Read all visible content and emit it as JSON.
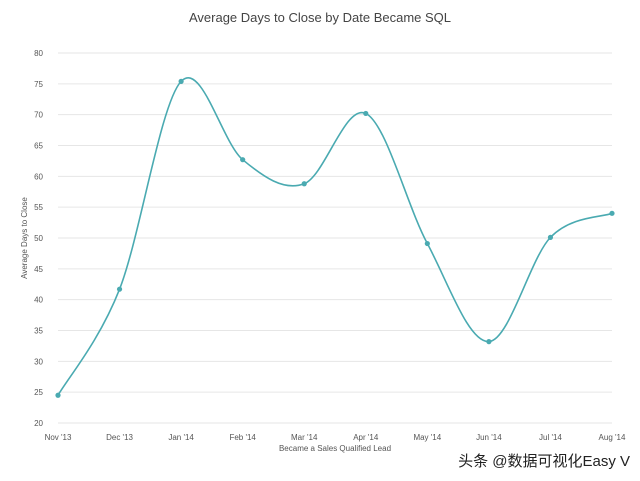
{
  "chart_data": {
    "type": "line",
    "title": "Average Days to Close by Date Became SQL",
    "xlabel": "Became a Sales Qualified Lead",
    "ylabel": "Average Days to Close",
    "categories": [
      "Nov '13",
      "Dec '13",
      "Jan '14",
      "Feb '14",
      "Mar '14",
      "Apr '14",
      "May '14",
      "Jun '14",
      "Jul '14",
      "Aug '14"
    ],
    "series": [
      {
        "values": [
          24.5,
          41.7,
          75.4,
          62.7,
          58.8,
          70.2,
          49.1,
          33.2,
          50.1,
          54.0
        ]
      }
    ],
    "ylim": [
      20,
      80
    ],
    "yticks": [
      "20",
      "25",
      "30",
      "35",
      "40",
      "45",
      "50",
      "55",
      "60",
      "65",
      "70",
      "75",
      "80"
    ],
    "grid": true,
    "legend": "none",
    "curve": "smooth"
  },
  "watermark": {
    "text": "头条 @数据可视化Easy V"
  },
  "colors": {
    "series": "#4aaab1",
    "grid": "#e6e6e6",
    "text": "#555555"
  }
}
